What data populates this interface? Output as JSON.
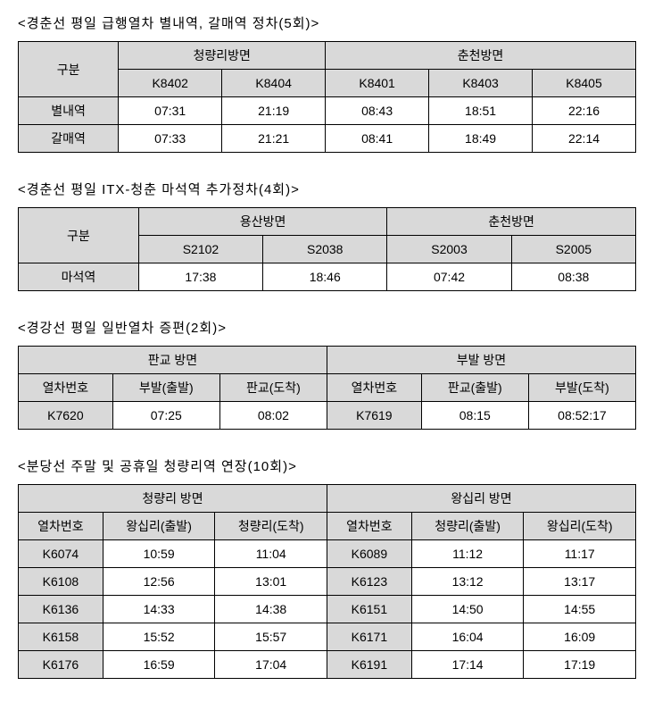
{
  "section1": {
    "title": "<경춘선 평일 급행열차 별내역, 갈매역 정차(5회)>",
    "col_label": "구분",
    "group1_label": "청량리방면",
    "group2_label": "춘천방면",
    "trains_g1": [
      "K8402",
      "K8404"
    ],
    "trains_g2": [
      "K8401",
      "K8403",
      "K8405"
    ],
    "rows": [
      {
        "label": "별내역",
        "g1": [
          "07:31",
          "21:19"
        ],
        "g2": [
          "08:43",
          "18:51",
          "22:16"
        ]
      },
      {
        "label": "갈매역",
        "g1": [
          "07:33",
          "21:21"
        ],
        "g2": [
          "08:41",
          "18:49",
          "22:14"
        ]
      }
    ]
  },
  "section2": {
    "title": "<경춘선 평일 ITX-청춘 마석역 추가정차(4회)>",
    "col_label": "구분",
    "group1_label": "용산방면",
    "group2_label": "춘천방면",
    "trains_g1": [
      "S2102",
      "S2038"
    ],
    "trains_g2": [
      "S2003",
      "S2005"
    ],
    "rows": [
      {
        "label": "마석역",
        "g1": [
          "17:38",
          "18:46"
        ],
        "g2": [
          "07:42",
          "08:38"
        ]
      }
    ]
  },
  "section3": {
    "title": "<경강선 평일 일반열차 증편(2회)>",
    "group1_label": "판교 방면",
    "group2_label": "부발 방면",
    "headers_g1": [
      "열차번호",
      "부발(출발)",
      "판교(도착)"
    ],
    "headers_g2": [
      "열차번호",
      "판교(출발)",
      "부발(도착)"
    ],
    "rows": [
      {
        "g1": [
          "K7620",
          "07:25",
          "08:02"
        ],
        "g2": [
          "K7619",
          "08:15",
          "08:52:17"
        ]
      }
    ]
  },
  "section4": {
    "title": "<분당선 주말 및 공휴일 청량리역 연장(10회)>",
    "group1_label": "청량리 방면",
    "group2_label": "왕십리 방면",
    "headers_g1": [
      "열차번호",
      "왕십리(출발)",
      "청량리(도착)"
    ],
    "headers_g2": [
      "열차번호",
      "청량리(출발)",
      "왕십리(도착)"
    ],
    "rows": [
      {
        "g1": [
          "K6074",
          "10:59",
          "11:04"
        ],
        "g2": [
          "K6089",
          "11:12",
          "11:17"
        ]
      },
      {
        "g1": [
          "K6108",
          "12:56",
          "13:01"
        ],
        "g2": [
          "K6123",
          "13:12",
          "13:17"
        ]
      },
      {
        "g1": [
          "K6136",
          "14:33",
          "14:38"
        ],
        "g2": [
          "K6151",
          "14:50",
          "14:55"
        ]
      },
      {
        "g1": [
          "K6158",
          "15:52",
          "15:57"
        ],
        "g2": [
          "K6171",
          "16:04",
          "16:09"
        ]
      },
      {
        "g1": [
          "K6176",
          "16:59",
          "17:04"
        ],
        "g2": [
          "K6191",
          "17:14",
          "17:19"
        ]
      }
    ]
  }
}
